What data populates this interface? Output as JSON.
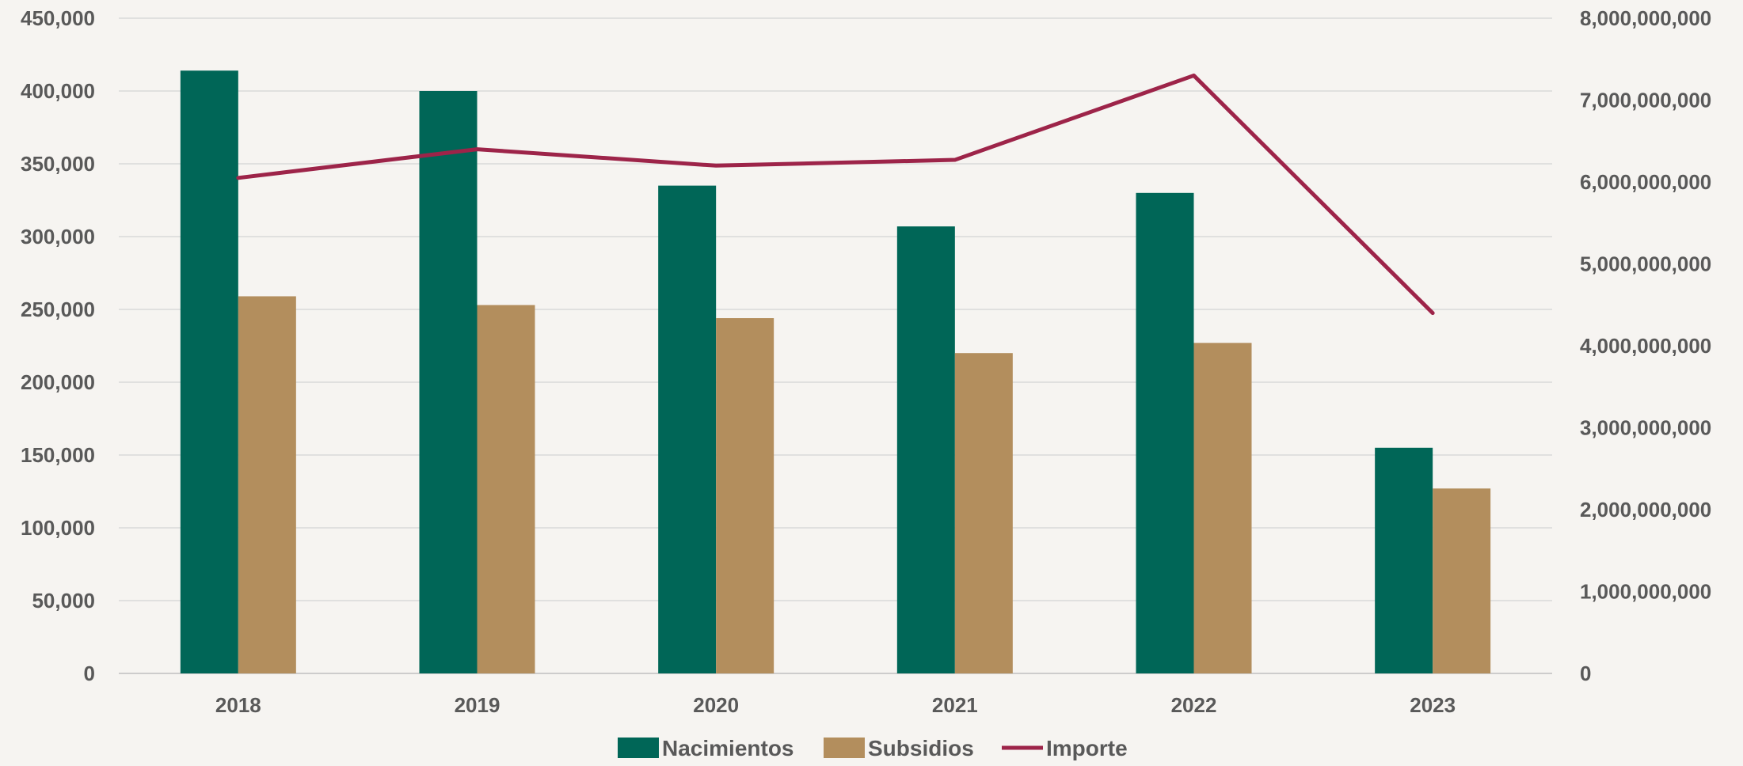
{
  "chart_data": {
    "type": "bar",
    "title": "",
    "categories": [
      "2018",
      "2019",
      "2020",
      "2021",
      "2022",
      "2023"
    ],
    "series": [
      {
        "name": "Nacimientos",
        "type": "bar",
        "axis": "left",
        "color": "#006657",
        "values": [
          414000,
          400000,
          335000,
          307000,
          330000,
          155000
        ]
      },
      {
        "name": "Subsidios",
        "type": "bar",
        "axis": "left",
        "color": "#b38e5d",
        "values": [
          259000,
          253000,
          244000,
          220000,
          227000,
          127000
        ]
      },
      {
        "name": "Importe",
        "type": "line",
        "axis": "right",
        "color": "#9d2449",
        "values": [
          6050000000,
          6400000000,
          6200000000,
          6270000000,
          7300000000,
          4400000000
        ]
      }
    ],
    "y_left": {
      "range": [
        0,
        450000
      ],
      "tick_labels": [
        "0",
        "50,000",
        "100,000",
        "150,000",
        "200,000",
        "250,000",
        "300,000",
        "350,000",
        "400,000",
        "450,000"
      ],
      "tick_values": [
        0,
        50000,
        100000,
        150000,
        200000,
        250000,
        300000,
        350000,
        400000,
        450000
      ]
    },
    "y_right": {
      "range": [
        0,
        8000000000
      ],
      "tick_labels": [
        "0",
        "1,000,000,000",
        "2,000,000,000",
        "3,000,000,000",
        "4,000,000,000",
        "5,000,000,000",
        "6,000,000,000",
        "7,000,000,000",
        "8,000,000,000"
      ],
      "tick_values": [
        0,
        1000000000,
        2000000000,
        3000000000,
        4000000000,
        5000000000,
        6000000000,
        7000000000,
        8000000000
      ]
    },
    "grid": true,
    "legend": {
      "position": "bottom",
      "entries": [
        {
          "label": "Nacimientos",
          "marker": "box",
          "color": "#006657"
        },
        {
          "label": "Subsidios",
          "marker": "box",
          "color": "#b38e5d"
        },
        {
          "label": "Importe",
          "marker": "line",
          "color": "#9d2449"
        }
      ]
    }
  }
}
